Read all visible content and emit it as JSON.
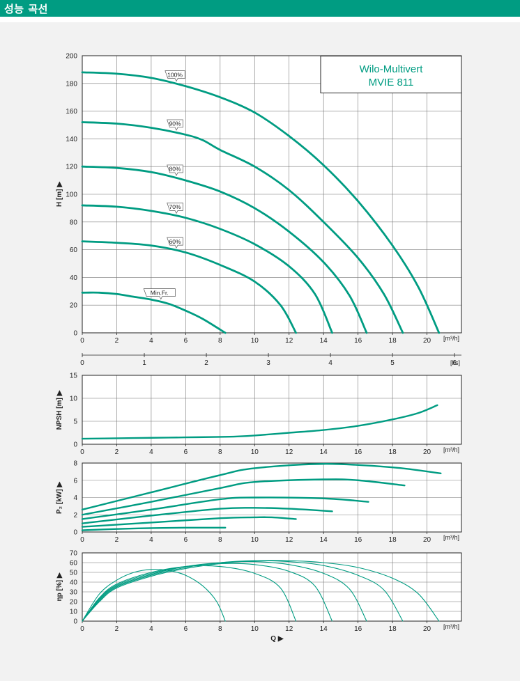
{
  "header": {
    "title": "성능 곡선"
  },
  "colors": {
    "header": "#009c82",
    "curve": "#009c82",
    "panel": "#f2f2f2",
    "grid": "#777777",
    "title_text": "#009c82"
  },
  "chart_title": {
    "line1": "Wilo-Multivert",
    "line2": "MVIE 811"
  },
  "units": {
    "q_m3h": "[m³/h]",
    "q_ls": "[l/s]"
  },
  "chart_data": [
    {
      "type": "line",
      "name": "head",
      "ylabel": "H [m] ▶",
      "xlim": [
        0,
        22
      ],
      "ylim": [
        0,
        200
      ],
      "xticks": [
        0,
        2,
        4,
        6,
        8,
        10,
        12,
        14,
        16,
        18,
        20
      ],
      "yticks": [
        0,
        20,
        40,
        60,
        80,
        100,
        120,
        140,
        160,
        180,
        200
      ],
      "secondary_axis": {
        "label": "[l/s]",
        "ticks": [
          0,
          1,
          2,
          3,
          4,
          5,
          6
        ],
        "factor": 3.6
      },
      "series": [
        {
          "name": "100%",
          "label_at": 5.3,
          "points": [
            [
              0,
              188
            ],
            [
              2,
              187
            ],
            [
              4,
              184
            ],
            [
              6,
              178
            ],
            [
              8,
              170
            ],
            [
              10,
              159
            ],
            [
              12,
              142
            ],
            [
              14,
              121
            ],
            [
              16,
              95
            ],
            [
              18,
              63
            ],
            [
              19.5,
              33
            ],
            [
              20.7,
              0
            ]
          ]
        },
        {
          "name": "90%",
          "label_at": 5.3,
          "points": [
            [
              0,
              152
            ],
            [
              2,
              151
            ],
            [
              4,
              148
            ],
            [
              6,
              143
            ],
            [
              7,
              139
            ],
            [
              8,
              132
            ],
            [
              10,
              120
            ],
            [
              12,
              103
            ],
            [
              14,
              80
            ],
            [
              16,
              54
            ],
            [
              17.5,
              28
            ],
            [
              18.6,
              0
            ]
          ]
        },
        {
          "name": "80%",
          "label_at": 5.3,
          "points": [
            [
              0,
              120
            ],
            [
              2,
              119
            ],
            [
              4,
              116
            ],
            [
              6,
              110
            ],
            [
              8,
              102
            ],
            [
              10,
              90
            ],
            [
              12,
              73
            ],
            [
              14,
              51
            ],
            [
              15.5,
              27
            ],
            [
              16.5,
              0
            ]
          ]
        },
        {
          "name": "70%",
          "label_at": 5.3,
          "points": [
            [
              0,
              92
            ],
            [
              2,
              91
            ],
            [
              4,
              88
            ],
            [
              6,
              83
            ],
            [
              8,
              75
            ],
            [
              10,
              64
            ],
            [
              12,
              48
            ],
            [
              13.5,
              28
            ],
            [
              14.5,
              0
            ]
          ]
        },
        {
          "name": "60%",
          "label_at": 5.3,
          "points": [
            [
              0,
              66
            ],
            [
              2,
              65
            ],
            [
              4,
              63
            ],
            [
              6,
              58
            ],
            [
              8,
              49
            ],
            [
              10,
              37
            ],
            [
              11.5,
              20
            ],
            [
              12.4,
              0
            ]
          ]
        },
        {
          "name": "Min.Fr.",
          "label_at": 4.4,
          "points": [
            [
              0,
              29
            ],
            [
              1,
              29
            ],
            [
              2,
              28
            ],
            [
              3,
              26
            ],
            [
              4,
              24
            ],
            [
              5,
              21
            ],
            [
              6,
              16
            ],
            [
              7,
              10
            ],
            [
              8.3,
              0
            ]
          ]
        }
      ]
    },
    {
      "type": "line",
      "name": "npsh",
      "ylabel": "NPSH [m] ▶",
      "xlim": [
        0,
        22
      ],
      "ylim": [
        0,
        15
      ],
      "xticks": [
        0,
        2,
        4,
        6,
        8,
        10,
        12,
        14,
        16,
        18,
        20
      ],
      "yticks": [
        0,
        5,
        10,
        15
      ],
      "series": [
        {
          "name": "NPSH",
          "points": [
            [
              0,
              1.2
            ],
            [
              2,
              1.3
            ],
            [
              4,
              1.4
            ],
            [
              6,
              1.5
            ],
            [
              8,
              1.6
            ],
            [
              9,
              1.7
            ],
            [
              10,
              1.9
            ],
            [
              12,
              2.5
            ],
            [
              14,
              3.1
            ],
            [
              16,
              4.0
            ],
            [
              18,
              5.4
            ],
            [
              19.5,
              6.8
            ],
            [
              20.6,
              8.5
            ]
          ]
        }
      ]
    },
    {
      "type": "line",
      "name": "power",
      "ylabel": "P₂ [kW] ▶",
      "xlim": [
        0,
        22
      ],
      "ylim": [
        0,
        8
      ],
      "xticks": [
        0,
        2,
        4,
        6,
        8,
        10,
        12,
        14,
        16,
        18,
        20
      ],
      "yticks": [
        0,
        2,
        4,
        6,
        8
      ],
      "series": [
        {
          "name": "100%",
          "points": [
            [
              0,
              2.6
            ],
            [
              4,
              4.6
            ],
            [
              8,
              6.6
            ],
            [
              10,
              7.4
            ],
            [
              14,
              7.9
            ],
            [
              18,
              7.5
            ],
            [
              20.8,
              6.8
            ]
          ]
        },
        {
          "name": "90%",
          "points": [
            [
              0,
              2.0
            ],
            [
              4,
              3.5
            ],
            [
              8,
              5.1
            ],
            [
              10,
              5.8
            ],
            [
              14,
              6.1
            ],
            [
              16,
              6.0
            ],
            [
              18.7,
              5.4
            ]
          ]
        },
        {
          "name": "80%",
          "points": [
            [
              0,
              1.5
            ],
            [
              4,
              2.6
            ],
            [
              8,
              3.8
            ],
            [
              10,
              4.0
            ],
            [
              14,
              3.9
            ],
            [
              16.6,
              3.5
            ]
          ]
        },
        {
          "name": "70%",
          "points": [
            [
              0,
              1.0
            ],
            [
              4,
              1.9
            ],
            [
              8,
              2.7
            ],
            [
              10,
              2.8
            ],
            [
              12,
              2.7
            ],
            [
              14.5,
              2.4
            ]
          ]
        },
        {
          "name": "60%",
          "points": [
            [
              0,
              0.6
            ],
            [
              4,
              1.1
            ],
            [
              8,
              1.6
            ],
            [
              10,
              1.7
            ],
            [
              11,
              1.7
            ],
            [
              12.4,
              1.5
            ]
          ]
        },
        {
          "name": "Min.Fr.",
          "points": [
            [
              0,
              0.2
            ],
            [
              2,
              0.35
            ],
            [
              4,
              0.45
            ],
            [
              6,
              0.5
            ],
            [
              8.3,
              0.5
            ]
          ]
        }
      ]
    },
    {
      "type": "line",
      "name": "efficiency",
      "ylabel": "ηp [%] ▶",
      "xlabel": "Q ▶",
      "xlim": [
        0,
        22
      ],
      "ylim": [
        0,
        70
      ],
      "xticks": [
        0,
        2,
        4,
        6,
        8,
        10,
        12,
        14,
        16,
        18,
        20
      ],
      "yticks": [
        0,
        10,
        20,
        30,
        40,
        50,
        60,
        70
      ],
      "series": [
        {
          "name": "100%",
          "points": [
            [
              0,
              0
            ],
            [
              1,
              20
            ],
            [
              2,
              34
            ],
            [
              4,
              46
            ],
            [
              6,
              54
            ],
            [
              8,
              59
            ],
            [
              10,
              62
            ],
            [
              12,
              62
            ],
            [
              14,
              60
            ],
            [
              16,
              55
            ],
            [
              18,
              44
            ],
            [
              19.5,
              28
            ],
            [
              20.7,
              0
            ]
          ]
        },
        {
          "name": "90%",
          "points": [
            [
              0,
              0
            ],
            [
              1,
              21
            ],
            [
              2,
              35
            ],
            [
              4,
              47
            ],
            [
              6,
              55
            ],
            [
              8,
              60
            ],
            [
              10,
              62
            ],
            [
              12,
              61
            ],
            [
              14,
              57
            ],
            [
              16,
              47
            ],
            [
              17.5,
              32
            ],
            [
              18.6,
              0
            ]
          ]
        },
        {
          "name": "80%",
          "points": [
            [
              0,
              0
            ],
            [
              1,
              22
            ],
            [
              2,
              36
            ],
            [
              4,
              48
            ],
            [
              6,
              56
            ],
            [
              8,
              60
            ],
            [
              10,
              61
            ],
            [
              12,
              58
            ],
            [
              14,
              49
            ],
            [
              15.5,
              33
            ],
            [
              16.5,
              0
            ]
          ]
        },
        {
          "name": "70%",
          "points": [
            [
              0,
              0
            ],
            [
              1,
              23
            ],
            [
              2,
              37
            ],
            [
              4,
              49
            ],
            [
              6,
              56
            ],
            [
              8,
              59
            ],
            [
              10,
              58
            ],
            [
              12,
              51
            ],
            [
              13.5,
              36
            ],
            [
              14.5,
              0
            ]
          ]
        },
        {
          "name": "60%",
          "points": [
            [
              0,
              0
            ],
            [
              1,
              24
            ],
            [
              2,
              38
            ],
            [
              4,
              50
            ],
            [
              6,
              56
            ],
            [
              8,
              56
            ],
            [
              10,
              49
            ],
            [
              11.5,
              34
            ],
            [
              12.4,
              0
            ]
          ]
        },
        {
          "name": "Min.Fr.",
          "points": [
            [
              0,
              0
            ],
            [
              1,
              28
            ],
            [
              2,
              42
            ],
            [
              3,
              50
            ],
            [
              4,
              53
            ],
            [
              5,
              52
            ],
            [
              6,
              47
            ],
            [
              7,
              36
            ],
            [
              7.8,
              20
            ],
            [
              8.3,
              0
            ]
          ]
        }
      ]
    }
  ]
}
